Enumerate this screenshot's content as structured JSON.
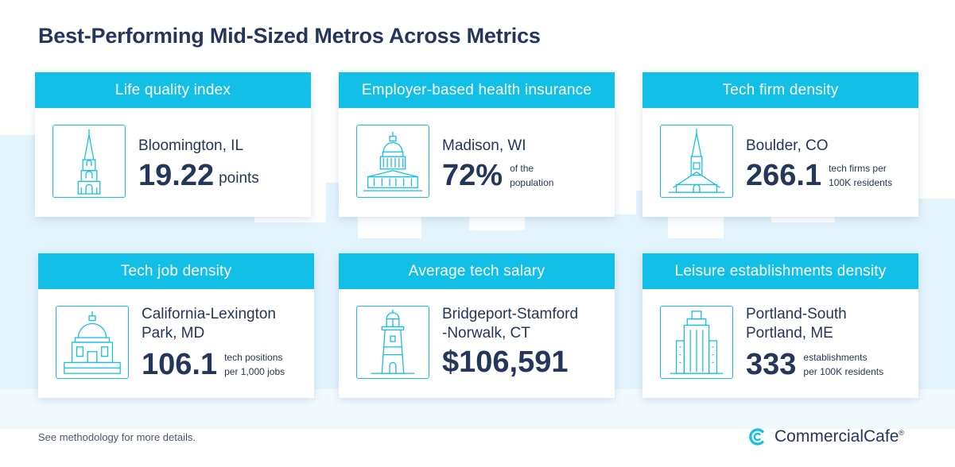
{
  "title": "Best-Performing Mid-Sized Metros Across Metrics",
  "cards": [
    {
      "header": "Life quality index",
      "city": "Bloomington, IL",
      "value": "19.22",
      "unit": "points",
      "icon": "church-spire-icon"
    },
    {
      "header": "Employer-based health insurance",
      "city": "Madison, WI",
      "value": "72%",
      "unit_line1": "of the",
      "unit_line2": "population",
      "icon": "capitol-dome-icon"
    },
    {
      "header": "Tech firm density",
      "city": "Boulder, CO",
      "value": "266.1",
      "unit_line1": "tech firms per",
      "unit_line2": "100K residents",
      "icon": "chapel-icon"
    },
    {
      "header": "Tech job density",
      "city_line1": "California-Lexington",
      "city_line2": "Park, MD",
      "value": "106.1",
      "unit_line1": "tech positions",
      "unit_line2": "per 1,000 jobs",
      "icon": "domed-building-icon"
    },
    {
      "header": "Average tech salary",
      "city_line1": "Bridgeport-Stamford",
      "city_line2": "-Norwalk, CT",
      "value": "$106,591",
      "icon": "lighthouse-icon"
    },
    {
      "header": "Leisure establishments density",
      "city_line1": "Portland-South",
      "city_line2": "Portland, ME",
      "value": "333",
      "unit_line1": "establishments",
      "unit_line2": "per 100K residents",
      "icon": "skyscraper-icon"
    }
  ],
  "footer": {
    "note": "See methodology for more details.",
    "brand": "CommercialCafe",
    "brand_mark": "®"
  },
  "colors": {
    "accent": "#12bfe6",
    "text": "#24365a",
    "skyline": "#dcf1fb"
  }
}
